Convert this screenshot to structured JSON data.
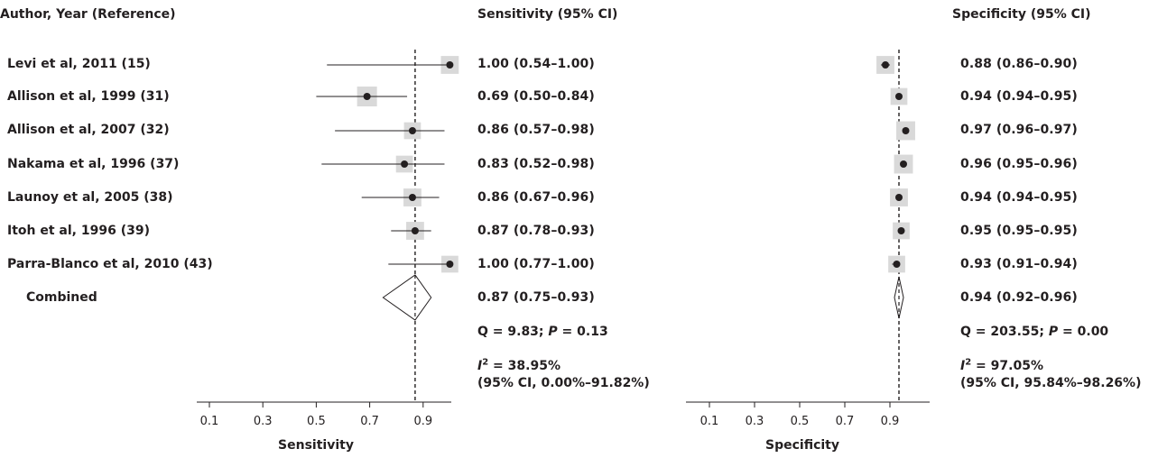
{
  "headers": {
    "study": "Author, Year (Reference)",
    "sensitivity": "Sensitivity (95% CI)",
    "specificity": "Specificity (95% CI)"
  },
  "studies": [
    {
      "label": "Levi et al, 2011 (15)",
      "sens_text": "1.00 (0.54–1.00)",
      "spec_text": "0.88 (0.86–0.90)"
    },
    {
      "label": "Allison et al, 1999 (31)",
      "sens_text": "0.69 (0.50–0.84)",
      "spec_text": "0.94 (0.94–0.95)"
    },
    {
      "label": "Allison et al, 2007 (32)",
      "sens_text": "0.86 (0.57–0.98)",
      "spec_text": "0.97 (0.96–0.97)"
    },
    {
      "label": "Nakama et al, 1996 (37)",
      "sens_text": "0.83 (0.52–0.98)",
      "spec_text": "0.96 (0.95–0.96)"
    },
    {
      "label": "Launoy et al, 2005 (38)",
      "sens_text": "0.86 (0.67–0.96)",
      "spec_text": "0.94 (0.94–0.95)"
    },
    {
      "label": "Itoh et al, 1996 (39)",
      "sens_text": "0.87 (0.78–0.93)",
      "spec_text": "0.95 (0.95–0.95)"
    },
    {
      "label": "Parra-Blanco et al, 2010 (43)",
      "sens_text": "1.00 (0.77–1.00)",
      "spec_text": "0.93 (0.91–0.94)"
    }
  ],
  "combined": {
    "label": "Combined",
    "sens_text": "0.87 (0.75–0.93)",
    "spec_text": "0.94 (0.92–0.96)"
  },
  "heterogeneity": {
    "sensitivity": {
      "q_prefix": "Q = 9.83; ",
      "p_label": "P",
      "p_suffix": " = 0.13",
      "i_label": "I",
      "i_exp": "2",
      "i_suffix": " = 38.95%",
      "ci": "(95% CI, 0.00%–91.82%)"
    },
    "specificity": {
      "q_prefix": "Q = 203.55; ",
      "p_label": "P",
      "p_suffix": " = 0.00",
      "i_label": "I",
      "i_exp": "2",
      "i_suffix": " = 97.05%",
      "ci": "(95% CI, 95.84%–98.26%)"
    }
  },
  "chart_data": [
    {
      "type": "forest",
      "xlabel": "Sensitivity",
      "xlim": [
        0.0,
        1.0
      ],
      "ticks": [
        0.1,
        0.3,
        0.5,
        0.7,
        0.9
      ],
      "tick_labels": [
        "0.1",
        "0.3",
        "0.5",
        "0.7",
        "0.9"
      ],
      "reference_line": 0.87,
      "points": [
        {
          "est": 1.0,
          "lo": 0.54,
          "hi": 1.0,
          "weight": 0.9
        },
        {
          "est": 0.69,
          "lo": 0.5,
          "hi": 0.84,
          "weight": 1.0
        },
        {
          "est": 0.86,
          "lo": 0.57,
          "hi": 0.98,
          "weight": 0.85
        },
        {
          "est": 0.83,
          "lo": 0.52,
          "hi": 0.98,
          "weight": 0.85
        },
        {
          "est": 0.86,
          "lo": 0.67,
          "hi": 0.96,
          "weight": 0.9
        },
        {
          "est": 0.87,
          "lo": 0.78,
          "hi": 0.93,
          "weight": 0.9
        },
        {
          "est": 1.0,
          "lo": 0.77,
          "hi": 1.0,
          "weight": 0.85
        }
      ],
      "combined": {
        "est": 0.87,
        "lo": 0.75,
        "hi": 0.93
      }
    },
    {
      "type": "forest",
      "xlabel": "Specificity",
      "xlim": [
        0.0,
        1.0
      ],
      "ticks": [
        0.1,
        0.3,
        0.5,
        0.7,
        0.9
      ],
      "tick_labels": [
        "0.1",
        "0.3",
        "0.5",
        "0.7",
        "0.9"
      ],
      "reference_line": 0.94,
      "points": [
        {
          "est": 0.88,
          "lo": 0.86,
          "hi": 0.9,
          "weight": 0.9
        },
        {
          "est": 0.94,
          "lo": 0.94,
          "hi": 0.95,
          "weight": 0.85
        },
        {
          "est": 0.97,
          "lo": 0.96,
          "hi": 0.97,
          "weight": 0.95
        },
        {
          "est": 0.96,
          "lo": 0.95,
          "hi": 0.96,
          "weight": 0.95
        },
        {
          "est": 0.94,
          "lo": 0.94,
          "hi": 0.95,
          "weight": 0.9
        },
        {
          "est": 0.95,
          "lo": 0.95,
          "hi": 0.95,
          "weight": 0.85
        },
        {
          "est": 0.93,
          "lo": 0.91,
          "hi": 0.94,
          "weight": 0.85
        }
      ],
      "combined": {
        "est": 0.94,
        "lo": 0.92,
        "hi": 0.96
      }
    }
  ],
  "colors": {
    "ink": "#231f20",
    "weight_box": "#d9d9d9"
  }
}
